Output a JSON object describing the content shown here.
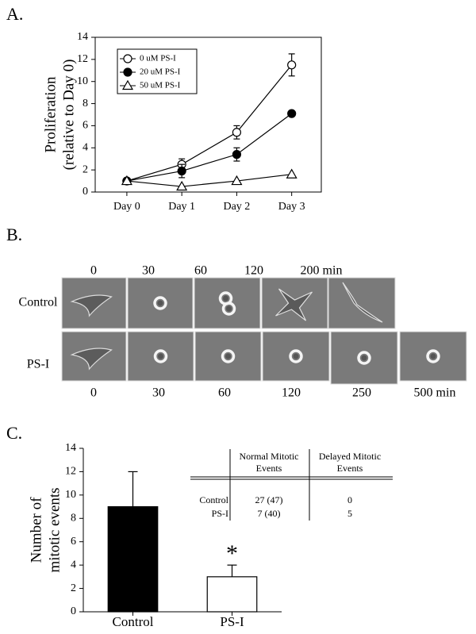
{
  "chart_data": [
    {
      "type": "line",
      "panel_label": "A.",
      "ylabel": [
        "Proliferation",
        "(relative to Day 0)"
      ],
      "categories": [
        "Day 0",
        "Day 1",
        "Day 2",
        "Day 3"
      ],
      "series": [
        {
          "name": "0 uM PS-I",
          "color": "#000000",
          "marker": "circle-open",
          "values": [
            1,
            2.5,
            5.4,
            11.5
          ],
          "errors": [
            0.2,
            0.5,
            0.6,
            1.0
          ]
        },
        {
          "name": "20 uM PS-I",
          "color": "#000000",
          "marker": "circle-filled",
          "values": [
            1,
            1.9,
            3.4,
            7.1
          ],
          "errors": [
            0.1,
            0.6,
            0.6,
            0.2
          ]
        },
        {
          "name": "50 uM PS-I",
          "color": "#000000",
          "marker": "triangle-open",
          "values": [
            1,
            0.5,
            1.0,
            1.6
          ],
          "errors": [
            0.1,
            0.1,
            0.1,
            0.1
          ]
        }
      ],
      "ylim": [
        0,
        14
      ],
      "yticks": [
        0,
        2,
        4,
        6,
        8,
        10,
        12,
        14
      ],
      "legend": "top-left",
      "frame": "box"
    },
    {
      "type": "bar",
      "panel_label": "C.",
      "ylabel": [
        "Number of",
        "mitotic events"
      ],
      "categories": [
        "Control",
        "PS-I"
      ],
      "values": [
        9,
        3
      ],
      "errors": [
        3,
        1
      ],
      "colors": [
        "#000000",
        "#ffffff"
      ],
      "annotation": "*",
      "ylim": [
        0,
        14
      ],
      "yticks": [
        0,
        2,
        4,
        6,
        8,
        10,
        12,
        14
      ],
      "frame": "axes"
    }
  ],
  "micrographs": {
    "panel_label": "B.",
    "top_times": [
      "0",
      "30",
      "60",
      "120",
      "200 min"
    ],
    "row_labels": [
      "Control",
      "PS-I"
    ],
    "bottom_times": [
      "0",
      "30",
      "60",
      "120",
      "250",
      "500 min"
    ]
  },
  "table": {
    "columns": [
      [
        "Normal Mitotic",
        "Events"
      ],
      [
        "Delayed Mitotic",
        "Events"
      ]
    ],
    "rows": [
      [
        "Control",
        "27 (47)",
        "0"
      ],
      [
        "PS-I",
        "7 (40)",
        "5"
      ]
    ]
  }
}
